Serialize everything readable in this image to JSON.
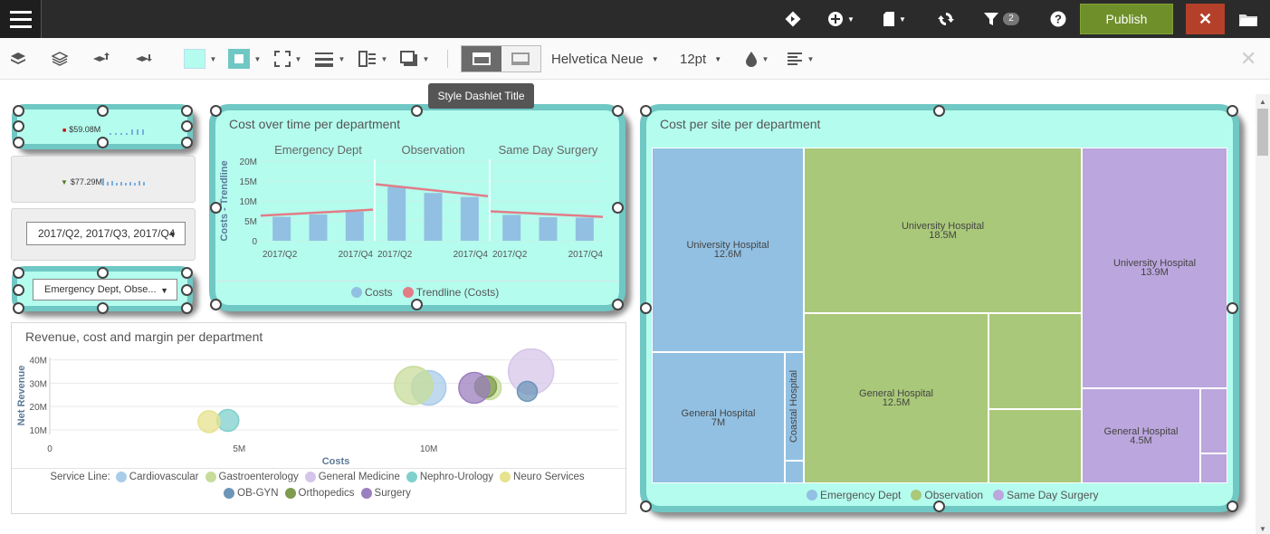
{
  "topbar": {
    "menu_icon": "hamburger-icon",
    "icons": [
      "diamond-icon",
      "add-circle-icon",
      "page-icon",
      "refresh-icon",
      "filter-icon",
      "help-icon",
      "folder-icon"
    ],
    "filter_badge": "2",
    "publish_label": "Publish",
    "close_label": "✕"
  },
  "toolbar": {
    "font_family": "Helvetica Neue",
    "font_size": "12pt",
    "fill_color": "#b4fcee",
    "tooltip": "Style Dashlet Title"
  },
  "kpis": [
    {
      "value": "$59.08M",
      "indicator": "■",
      "indicator_color": "#cc0000"
    },
    {
      "value": "$77.29M",
      "indicator": "▼",
      "indicator_color": "#4a7c1e"
    }
  ],
  "filters": {
    "quarters": "2017/Q2, 2017/Q3, 2017/Q4",
    "departments": "Emergency Dept, Obse..."
  },
  "chart_data": [
    {
      "type": "bar",
      "title": "Cost over time per department",
      "ylabel": "Costs - Trendline",
      "ylim": [
        0,
        20000000
      ],
      "yticks": [
        "20M",
        "15M",
        "10M",
        "5M",
        "0"
      ],
      "panels": [
        {
          "name": "Emergency Dept",
          "categories": [
            "2017/Q2",
            "2017/Q3",
            "2017/Q4"
          ],
          "tick_labels": [
            "2017/Q2",
            "2017/Q4"
          ],
          "values": [
            6000000,
            6600000,
            7300000
          ],
          "trend": [
            6300000,
            7800000
          ]
        },
        {
          "name": "Observation",
          "categories": [
            "2017/Q2",
            "2017/Q3",
            "2017/Q4"
          ],
          "tick_labels": [
            "2017/Q2",
            "2017/Q4"
          ],
          "values": [
            13500000,
            12000000,
            11000000
          ],
          "trend": [
            14200000,
            11200000
          ]
        },
        {
          "name": "Same Day Surgery",
          "categories": [
            "2017/Q2",
            "2017/Q3",
            "2017/Q4"
          ],
          "tick_labels": [
            "2017/Q2",
            "2017/Q4"
          ],
          "values": [
            6500000,
            5900000,
            5800000
          ],
          "trend": [
            7400000,
            6000000
          ]
        }
      ],
      "series": [
        {
          "name": "Costs",
          "color": "#92c0e2"
        },
        {
          "name": "Trendline (Costs)",
          "color": "#e27c87"
        }
      ],
      "legend": "bottom"
    },
    {
      "type": "scatter",
      "title": "Revenue, cost and margin per department",
      "xlabel": "Costs",
      "ylabel": "Net Revenue",
      "xticks": [
        {
          "v": 0,
          "label": "0"
        },
        {
          "v": 5000000,
          "label": "5M"
        },
        {
          "v": 10000000,
          "label": "10M"
        }
      ],
      "yticks": [
        {
          "v": 10000000,
          "label": "10M"
        },
        {
          "v": 20000000,
          "label": "20M"
        },
        {
          "v": 30000000,
          "label": "30M"
        },
        {
          "v": 40000000,
          "label": "40M"
        }
      ],
      "xlim": [
        0,
        15000000
      ],
      "ylim": [
        8000000,
        41000000
      ],
      "legend_label": "Service Line:",
      "series": [
        {
          "name": "Cardiovascular",
          "color": "#a9cce9",
          "points": [
            {
              "x": 10000000,
              "y": 28000000,
              "r": 19
            }
          ]
        },
        {
          "name": "Gastroenterology",
          "color": "#c7dc9a",
          "points": [
            {
              "x": 9600000,
              "y": 29000000,
              "r": 21
            },
            {
              "x": 11600000,
              "y": 28000000,
              "r": 13
            }
          ]
        },
        {
          "name": "General Medicine",
          "color": "#d5c5ea",
          "points": [
            {
              "x": 12700000,
              "y": 35000000,
              "r": 25
            }
          ]
        },
        {
          "name": "Nephro-Urology",
          "color": "#7fd0cc",
          "points": [
            {
              "x": 4700000,
              "y": 14000000,
              "r": 12
            }
          ]
        },
        {
          "name": "Neuro Services",
          "color": "#e6e28e",
          "points": [
            {
              "x": 4200000,
              "y": 13500000,
              "r": 12
            }
          ]
        },
        {
          "name": "OB-GYN",
          "color": "#6d95b8",
          "points": [
            {
              "x": 12600000,
              "y": 26500000,
              "r": 11
            }
          ]
        },
        {
          "name": "Orthopedics",
          "color": "#7e9b4e",
          "points": [
            {
              "x": 11500000,
              "y": 28500000,
              "r": 12
            }
          ]
        },
        {
          "name": "Surgery",
          "color": "#9b7fbe",
          "points": [
            {
              "x": 11200000,
              "y": 28000000,
              "r": 17
            }
          ]
        }
      ]
    },
    {
      "type": "treemap",
      "title": "Cost per site per department",
      "series": [
        {
          "name": "Emergency Dept",
          "color": "#92c0e2"
        },
        {
          "name": "Observation",
          "color": "#a9c879"
        },
        {
          "name": "Same Day Surgery",
          "color": "#bba6dd"
        }
      ],
      "cells": [
        {
          "dept": 0,
          "site": "University Hospital",
          "value": "12.6M"
        },
        {
          "dept": 0,
          "site": "General Hospital",
          "value": "7M"
        },
        {
          "dept": 0,
          "site": "Coastal Hospital",
          "value": ""
        },
        {
          "dept": 0,
          "site": "",
          "value": ""
        },
        {
          "dept": 1,
          "site": "University Hospital",
          "value": "18.5M"
        },
        {
          "dept": 1,
          "site": "General Hospital",
          "value": "12.5M"
        },
        {
          "dept": 1,
          "site": "",
          "value": ""
        },
        {
          "dept": 1,
          "site": "",
          "value": ""
        },
        {
          "dept": 2,
          "site": "University Hospital",
          "value": "13.9M"
        },
        {
          "dept": 2,
          "site": "General Hospital",
          "value": "4.5M"
        },
        {
          "dept": 2,
          "site": "",
          "value": ""
        },
        {
          "dept": 2,
          "site": "",
          "value": ""
        }
      ]
    }
  ]
}
